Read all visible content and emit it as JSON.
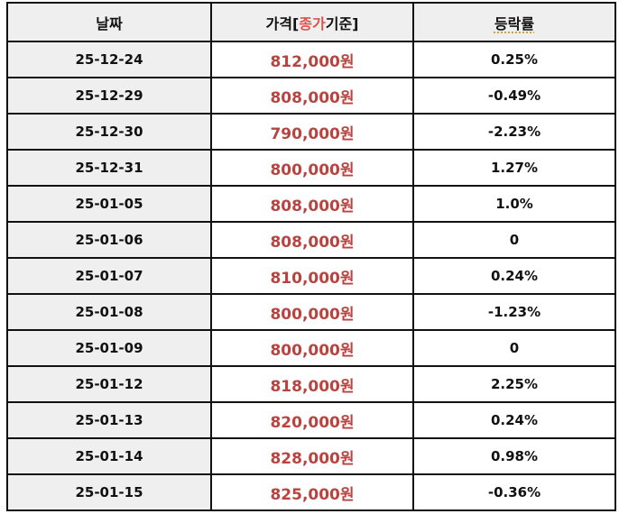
{
  "table": {
    "headers": {
      "date": "날짜",
      "price_prefix": "가격[",
      "price_accent": "종가",
      "price_suffix": "기준]",
      "rate": "등락률"
    },
    "rows": [
      {
        "date": "25-12-24",
        "price": "812,000원",
        "rate": "0.25%"
      },
      {
        "date": "25-12-29",
        "price": "808,000원",
        "rate": "-0.49%"
      },
      {
        "date": "25-12-30",
        "price": "790,000원",
        "rate": "-2.23%"
      },
      {
        "date": "25-12-31",
        "price": "800,000원",
        "rate": "1.27%"
      },
      {
        "date": "25-01-05",
        "price": "808,000원",
        "rate": "1.0%"
      },
      {
        "date": "25-01-06",
        "price": "808,000원",
        "rate": "0"
      },
      {
        "date": "25-01-07",
        "price": "810,000원",
        "rate": "0.24%"
      },
      {
        "date": "25-01-08",
        "price": "800,000원",
        "rate": "-1.23%"
      },
      {
        "date": "25-01-09",
        "price": "800,000원",
        "rate": "0"
      },
      {
        "date": "25-01-12",
        "price": "818,000원",
        "rate": "2.25%"
      },
      {
        "date": "25-01-13",
        "price": "820,000원",
        "rate": "0.24%"
      },
      {
        "date": "25-01-14",
        "price": "828,000원",
        "rate": "0.98%"
      },
      {
        "date": "25-01-15",
        "price": "825,000원",
        "rate": "-0.36%"
      }
    ]
  },
  "colors": {
    "price_text": "#b8433f",
    "header_accent": "#d9534f",
    "header_bg": "#efefef",
    "border": "#111111"
  }
}
